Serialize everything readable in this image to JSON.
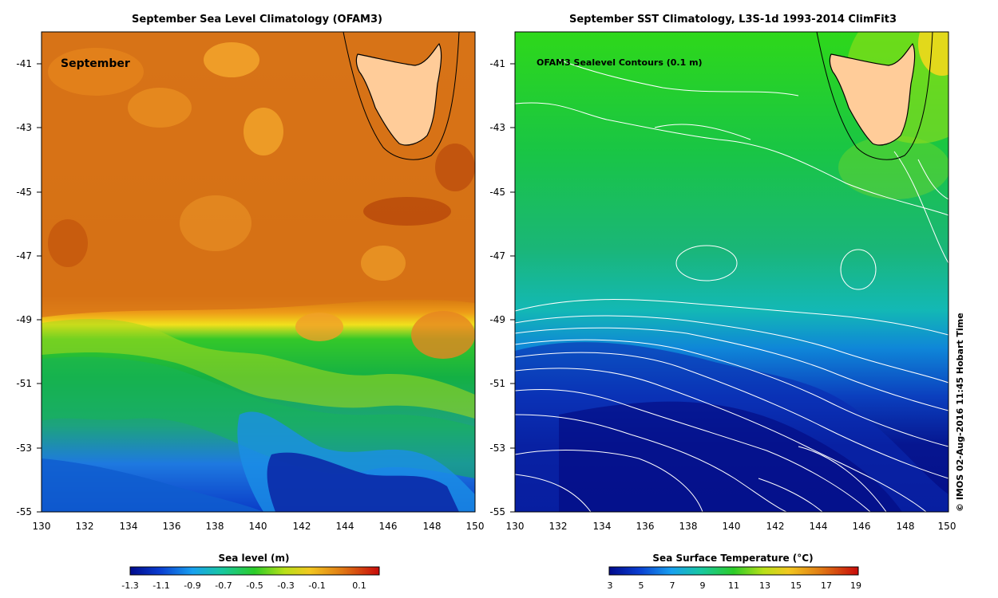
{
  "left_panel": {
    "title": "September Sea Level Climatology (OFAM3)",
    "month_label": "September",
    "yticks": [
      "-41",
      "-43",
      "-45",
      "-47",
      "-49",
      "-51",
      "-53",
      "-55"
    ],
    "xticks": [
      "130",
      "132",
      "134",
      "136",
      "138",
      "140",
      "142",
      "144",
      "146",
      "148",
      "150"
    ],
    "colorbar": {
      "title": "Sea level (m)",
      "ticks": [
        "-1.3",
        "-1.1",
        "-0.9",
        "-0.7",
        "-0.5",
        "-0.3",
        "-0.1",
        "0.1"
      ],
      "range": [
        -1.4,
        0.2
      ]
    }
  },
  "right_panel": {
    "title": "September SST Climatology, L3S-1d 1993-2014 ClimFit3",
    "contour_label": "OFAM3 Sealevel Contours (0.1 m)",
    "yticks": [
      "-41",
      "-43",
      "-45",
      "-47",
      "-49",
      "-51",
      "-53",
      "-55"
    ],
    "xticks": [
      "130",
      "132",
      "134",
      "136",
      "138",
      "140",
      "142",
      "144",
      "146",
      "148",
      "150"
    ],
    "colorbar": {
      "title": "Sea Surface Temperature (°C)",
      "ticks": [
        "3",
        "5",
        "7",
        "9",
        "11",
        "13",
        "15",
        "17",
        "19"
      ],
      "range": [
        3,
        19
      ]
    }
  },
  "credit": "© IMOS 02-Aug-2016 11:45 Hobart Time",
  "map_extent": {
    "lon_range": [
      130,
      150
    ],
    "lat_range": [
      -55,
      -40
    ]
  },
  "colors": {
    "land": "#ffcc99",
    "contour": "#ffffff",
    "coast": "#000000",
    "sea_level_high": "#d06a10",
    "sea_level_low": "#000a8c",
    "sst_warm": "#2ed81a",
    "sst_cold": "#000a8c"
  },
  "icons": {
    "land": "tasmania-landmass"
  }
}
